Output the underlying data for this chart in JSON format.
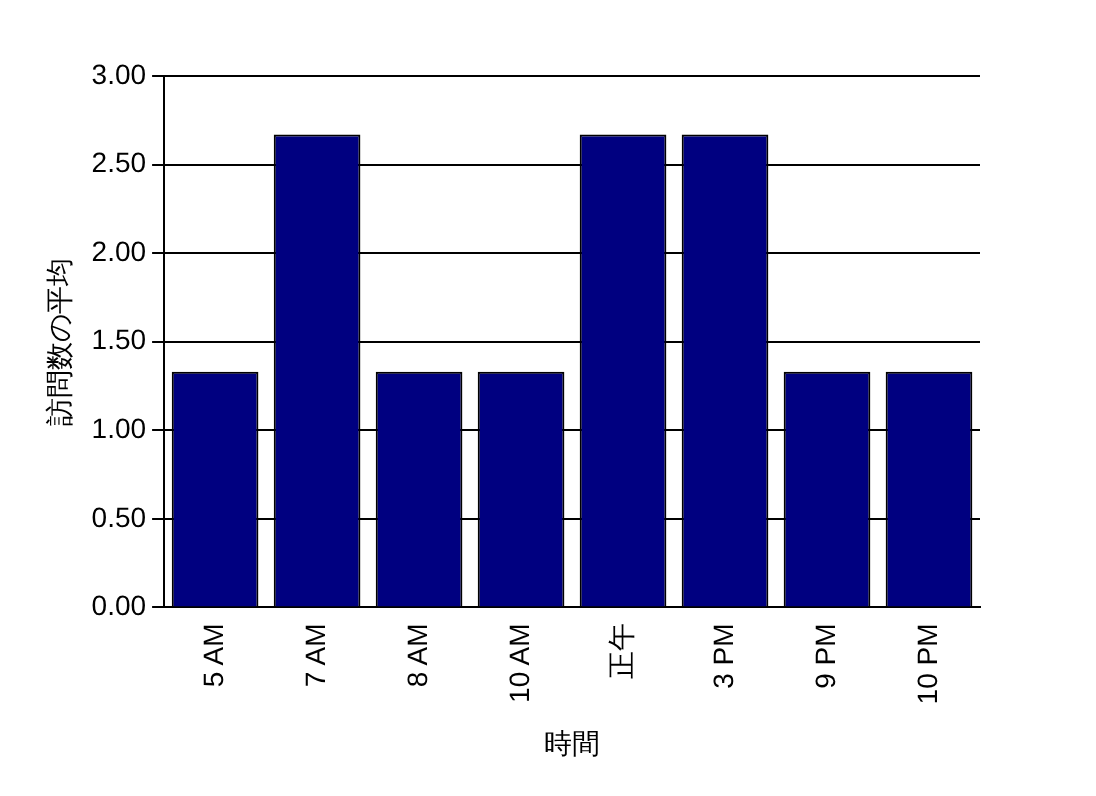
{
  "chart_data": {
    "type": "bar",
    "xlabel": "時間",
    "ylabel": "訪問数の平均",
    "categories": [
      "5 AM",
      "7 AM",
      "8 AM",
      "10 AM",
      "正午",
      "3 PM",
      "9 PM",
      "10 PM"
    ],
    "values": [
      1.33,
      2.67,
      1.33,
      1.33,
      2.67,
      2.67,
      1.33,
      1.33
    ],
    "color": "#000080",
    "ylim": [
      0,
      3
    ],
    "yticks": [
      {
        "value": 0,
        "label": "0.00"
      },
      {
        "value": 0.5,
        "label": "0.50"
      },
      {
        "value": 1,
        "label": "1.00"
      },
      {
        "value": 1.5,
        "label": "1.50"
      },
      {
        "value": 2,
        "label": "2.00"
      },
      {
        "value": 2.5,
        "label": "2.50"
      },
      {
        "value": 3,
        "label": "3.00"
      }
    ],
    "grid": "y",
    "legend": false
  }
}
